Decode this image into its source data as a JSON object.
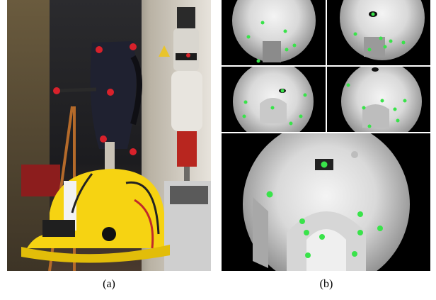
{
  "captions": {
    "a": "(a)",
    "b": "(b)"
  },
  "colors": {
    "helmet": "#f6d312",
    "feature_marker": "#39e34a",
    "device_body": "#1f2130",
    "red_knob": "#d8212b"
  }
}
